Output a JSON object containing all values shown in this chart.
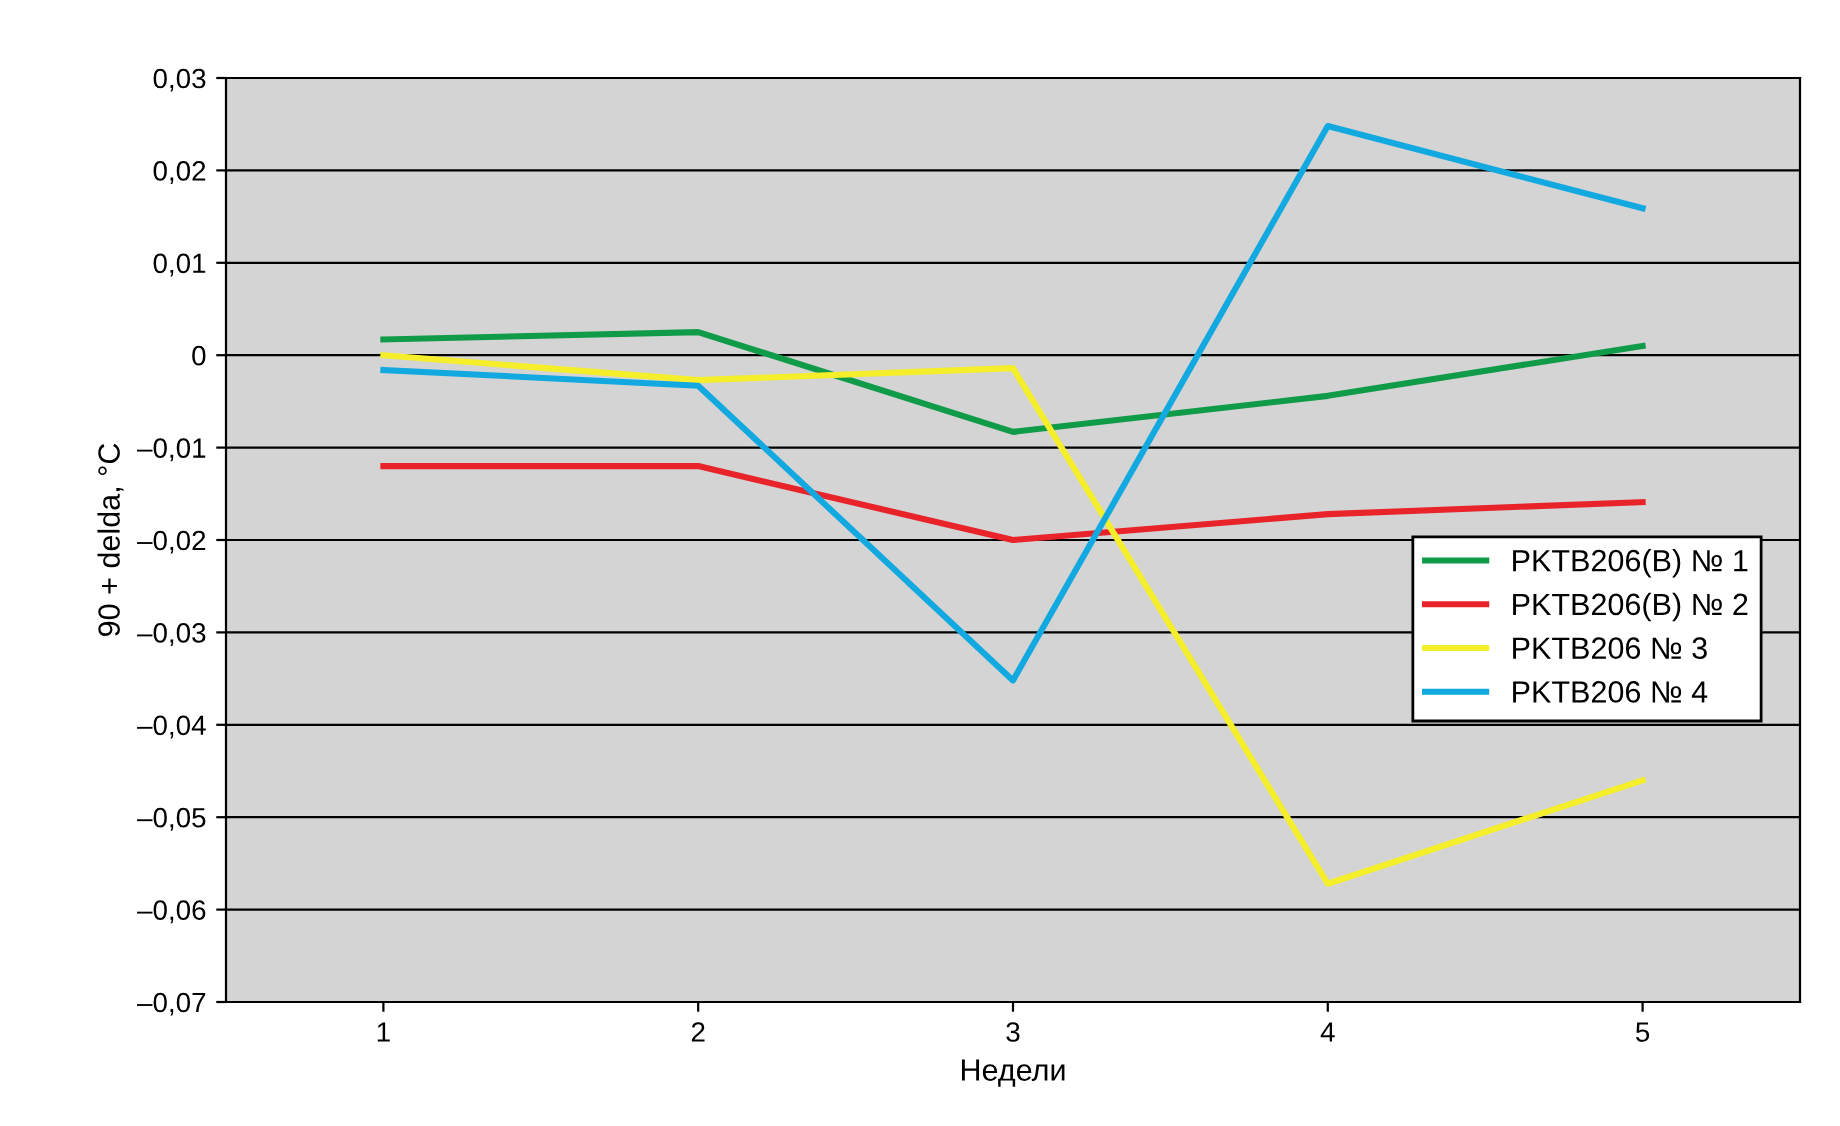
{
  "chart_data": {
    "type": "line",
    "xlabel": "Недели",
    "ylabel": "90 + delda, °C",
    "categories": [
      "1",
      "2",
      "3",
      "4",
      "5"
    ],
    "series": [
      {
        "name": "PKTB206(B) № 1",
        "color": "#109b48",
        "values": [
          0.0017,
          0.0025,
          -0.0083,
          -0.0044,
          0.001
        ]
      },
      {
        "name": "PKTB206(B) № 2",
        "color": "#e8242a",
        "values": [
          -0.012,
          -0.012,
          -0.02,
          -0.0172,
          -0.0159
        ]
      },
      {
        "name": "PKTB206 № 3",
        "color": "#f5ee2a",
        "values": [
          0.0,
          -0.0027,
          -0.0014,
          -0.0572,
          -0.046
        ]
      },
      {
        "name": "PKTB206 № 4",
        "color": "#12a9e0",
        "values": [
          -0.0016,
          -0.0033,
          -0.0352,
          0.0248,
          0.0159
        ]
      }
    ],
    "ylim": [
      -0.07,
      0.03
    ],
    "yticks": [
      {
        "value": 0.03,
        "label": "0,03"
      },
      {
        "value": 0.02,
        "label": "0,02"
      },
      {
        "value": 0.01,
        "label": "0,01"
      },
      {
        "value": 0,
        "label": "0"
      },
      {
        "value": -0.01,
        "label": "–0,01"
      },
      {
        "value": -0.02,
        "label": "–0,02"
      },
      {
        "value": -0.03,
        "label": "–0,03"
      },
      {
        "value": -0.04,
        "label": "–0,04"
      },
      {
        "value": -0.05,
        "label": "–0,05"
      },
      {
        "value": -0.06,
        "label": "–0,06"
      },
      {
        "value": -0.07,
        "label": "–0,07"
      }
    ],
    "grid": "y",
    "legend": "right",
    "marker": "none",
    "line_style": "solid"
  }
}
